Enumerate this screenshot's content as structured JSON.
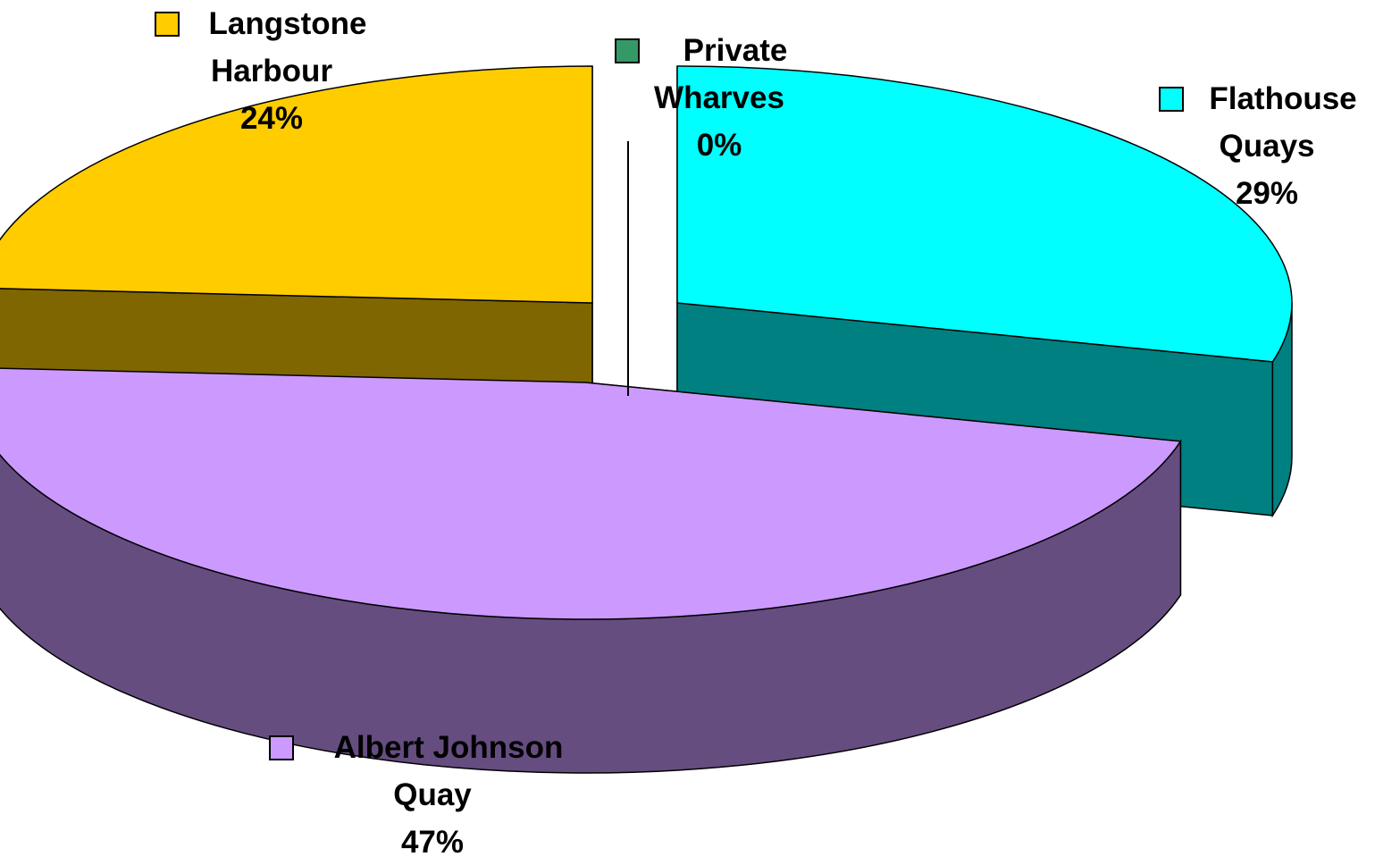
{
  "chart_data": {
    "type": "pie",
    "style": "3d-exploded",
    "slices": [
      {
        "name_lines": [
          "Flathouse",
          "Quays"
        ],
        "label": "Flathouse Quays",
        "value": 29,
        "value_label": "29%",
        "top_color": "#00FFFF",
        "side_color": "#008080"
      },
      {
        "name_lines": [
          "Albert Johnson",
          "Quay"
        ],
        "label": "Albert Johnson Quay",
        "value": 47,
        "value_label": "47%",
        "top_color": "#CC99FF",
        "side_color": "#664D80"
      },
      {
        "name_lines": [
          "Langstone",
          "Harbour"
        ],
        "label": "Langstone Harbour",
        "value": 24,
        "value_label": "24%",
        "top_color": "#FFCC00",
        "side_color": "#806600"
      },
      {
        "name_lines": [
          "Private",
          "Wharves"
        ],
        "label": "Private Wharves",
        "value": 0,
        "value_label": "0%",
        "top_color": "#339966",
        "side_color": "#1A4D33"
      }
    ],
    "legend": "labels-with-swatches"
  }
}
